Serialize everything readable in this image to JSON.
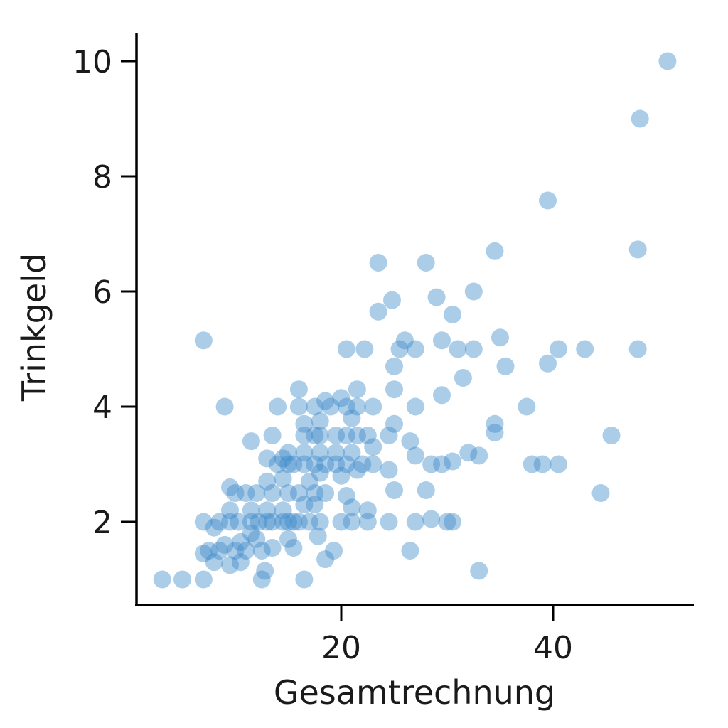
{
  "chart_data": {
    "type": "scatter",
    "xlabel": "Gesamtrechnung",
    "ylabel": "Trinkgeld",
    "xlim": [
      3,
      53
    ],
    "ylim": [
      0.65,
      10.5
    ],
    "xticks": [
      "20",
      "40"
    ],
    "yticks": [
      "2",
      "4",
      "6",
      "8",
      "10"
    ],
    "grid": false,
    "legend": "none",
    "point_color": "#3a87c8",
    "point_opacity": 0.42,
    "series": [
      {
        "points": [
          [
            3.1,
            1.0
          ],
          [
            5.0,
            1.0
          ],
          [
            7.0,
            1.0
          ],
          [
            12.5,
            1.0
          ],
          [
            16.5,
            1.0
          ],
          [
            33.0,
            1.15
          ],
          [
            12.8,
            1.15
          ],
          [
            8.0,
            1.3
          ],
          [
            9.5,
            1.25
          ],
          [
            10.5,
            1.3
          ],
          [
            18.5,
            1.35
          ],
          [
            7.0,
            1.45
          ],
          [
            7.5,
            1.5
          ],
          [
            8.5,
            1.5
          ],
          [
            10.0,
            1.5
          ],
          [
            11.0,
            1.5
          ],
          [
            12.5,
            1.5
          ],
          [
            13.5,
            1.55
          ],
          [
            15.5,
            1.55
          ],
          [
            19.3,
            1.5
          ],
          [
            26.5,
            1.5
          ],
          [
            9.0,
            1.6
          ],
          [
            10.5,
            1.65
          ],
          [
            12.0,
            1.7
          ],
          [
            15.0,
            1.7
          ],
          [
            11.5,
            1.8
          ],
          [
            17.8,
            1.75
          ],
          [
            8.0,
            1.9
          ],
          [
            7.0,
            2.0
          ],
          [
            8.5,
            2.0
          ],
          [
            9.5,
            2.0
          ],
          [
            10.3,
            2.0
          ],
          [
            11.5,
            2.0
          ],
          [
            12.2,
            2.0
          ],
          [
            13.0,
            2.0
          ],
          [
            13.5,
            2.0
          ],
          [
            14.5,
            2.0
          ],
          [
            15.0,
            2.0
          ],
          [
            15.5,
            2.0
          ],
          [
            16.0,
            2.0
          ],
          [
            17.0,
            2.0
          ],
          [
            18.0,
            2.0
          ],
          [
            20.0,
            2.0
          ],
          [
            21.0,
            2.0
          ],
          [
            22.5,
            2.0
          ],
          [
            24.5,
            2.0
          ],
          [
            27.0,
            2.0
          ],
          [
            28.5,
            2.05
          ],
          [
            30.0,
            2.0
          ],
          [
            30.5,
            2.0
          ],
          [
            9.5,
            2.2
          ],
          [
            11.5,
            2.2
          ],
          [
            13.0,
            2.2
          ],
          [
            14.5,
            2.2
          ],
          [
            16.5,
            2.3
          ],
          [
            17.5,
            2.3
          ],
          [
            21.0,
            2.25
          ],
          [
            22.5,
            2.2
          ],
          [
            10.0,
            2.5
          ],
          [
            11.0,
            2.5
          ],
          [
            12.0,
            2.5
          ],
          [
            13.5,
            2.5
          ],
          [
            15.0,
            2.5
          ],
          [
            16.0,
            2.5
          ],
          [
            17.5,
            2.5
          ],
          [
            18.5,
            2.5
          ],
          [
            20.5,
            2.45
          ],
          [
            25.0,
            2.55
          ],
          [
            28.0,
            2.55
          ],
          [
            44.5,
            2.5
          ],
          [
            9.5,
            2.6
          ],
          [
            13.0,
            2.7
          ],
          [
            14.5,
            2.75
          ],
          [
            17.0,
            2.7
          ],
          [
            18.0,
            2.85
          ],
          [
            20.0,
            2.8
          ],
          [
            21.5,
            2.9
          ],
          [
            24.5,
            2.9
          ],
          [
            14.0,
            3.0
          ],
          [
            15.0,
            3.0
          ],
          [
            15.5,
            3.0
          ],
          [
            16.5,
            3.0
          ],
          [
            17.5,
            3.0
          ],
          [
            18.5,
            3.0
          ],
          [
            19.5,
            3.0
          ],
          [
            20.5,
            3.0
          ],
          [
            22.0,
            3.0
          ],
          [
            23.0,
            3.0
          ],
          [
            28.5,
            3.0
          ],
          [
            29.5,
            3.0
          ],
          [
            30.5,
            3.05
          ],
          [
            38.0,
            3.0
          ],
          [
            39.0,
            3.0
          ],
          [
            40.5,
            3.0
          ],
          [
            15.0,
            3.2
          ],
          [
            16.5,
            3.2
          ],
          [
            18.0,
            3.2
          ],
          [
            19.5,
            3.2
          ],
          [
            21.0,
            3.2
          ],
          [
            23.0,
            3.3
          ],
          [
            27.0,
            3.15
          ],
          [
            32.0,
            3.2
          ],
          [
            33.0,
            3.15
          ],
          [
            13.0,
            3.1
          ],
          [
            14.5,
            3.1
          ],
          [
            11.5,
            3.4
          ],
          [
            13.5,
            3.5
          ],
          [
            16.5,
            3.5
          ],
          [
            17.5,
            3.5
          ],
          [
            18.0,
            3.5
          ],
          [
            19.5,
            3.5
          ],
          [
            20.5,
            3.5
          ],
          [
            21.5,
            3.5
          ],
          [
            22.5,
            3.5
          ],
          [
            24.5,
            3.5
          ],
          [
            26.5,
            3.4
          ],
          [
            34.5,
            3.55
          ],
          [
            45.5,
            3.5
          ],
          [
            16.5,
            3.7
          ],
          [
            18.0,
            3.75
          ],
          [
            21.0,
            3.8
          ],
          [
            25.0,
            3.7
          ],
          [
            34.5,
            3.7
          ],
          [
            9.0,
            4.0
          ],
          [
            14.0,
            4.0
          ],
          [
            16.0,
            4.0
          ],
          [
            17.5,
            4.0
          ],
          [
            19.0,
            4.0
          ],
          [
            20.5,
            4.0
          ],
          [
            21.5,
            4.0
          ],
          [
            23.0,
            4.0
          ],
          [
            27.0,
            4.0
          ],
          [
            37.5,
            4.0
          ],
          [
            16.0,
            4.3
          ],
          [
            18.5,
            4.1
          ],
          [
            20.0,
            4.15
          ],
          [
            21.5,
            4.3
          ],
          [
            25.0,
            4.3
          ],
          [
            29.5,
            4.2
          ],
          [
            31.5,
            4.5
          ],
          [
            25.0,
            4.7
          ],
          [
            35.5,
            4.7
          ],
          [
            39.5,
            4.75
          ],
          [
            7.0,
            5.15
          ],
          [
            20.5,
            5.0
          ],
          [
            22.2,
            5.0
          ],
          [
            25.5,
            5.0
          ],
          [
            27.0,
            5.0
          ],
          [
            29.5,
            5.15
          ],
          [
            31.0,
            5.0
          ],
          [
            32.5,
            5.0
          ],
          [
            35.0,
            5.2
          ],
          [
            40.5,
            5.0
          ],
          [
            43.0,
            5.0
          ],
          [
            48.0,
            5.0
          ],
          [
            26.0,
            5.15
          ],
          [
            23.5,
            5.65
          ],
          [
            24.8,
            5.85
          ],
          [
            30.5,
            5.6
          ],
          [
            29.0,
            5.9
          ],
          [
            32.5,
            6.0
          ],
          [
            23.5,
            6.5
          ],
          [
            28.0,
            6.5
          ],
          [
            34.5,
            6.7
          ],
          [
            48.0,
            6.73
          ],
          [
            39.5,
            7.58
          ],
          [
            48.2,
            9.0
          ],
          [
            50.8,
            10.0
          ]
        ]
      }
    ]
  }
}
